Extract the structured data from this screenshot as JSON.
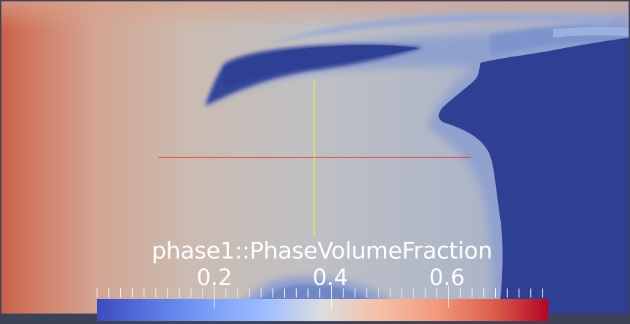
{
  "legend": {
    "title": "phase1::PhaseVolumeFraction",
    "tick_labels": [
      "0.2",
      "0.4",
      "0.6"
    ],
    "tick_values": [
      0.2,
      0.4,
      0.6
    ],
    "range": [
      0.0,
      0.77
    ],
    "colormap": "Cool to Warm",
    "colors": {
      "low": "#3b4cc0",
      "mid": "#dddddd",
      "high": "#b40426"
    }
  },
  "crosshair": {
    "horizontal_color": "#ff0000",
    "vertical_color": "#ffff00"
  },
  "colors": {
    "background": "#3d4356",
    "field_low": "#2f3f93"
  }
}
